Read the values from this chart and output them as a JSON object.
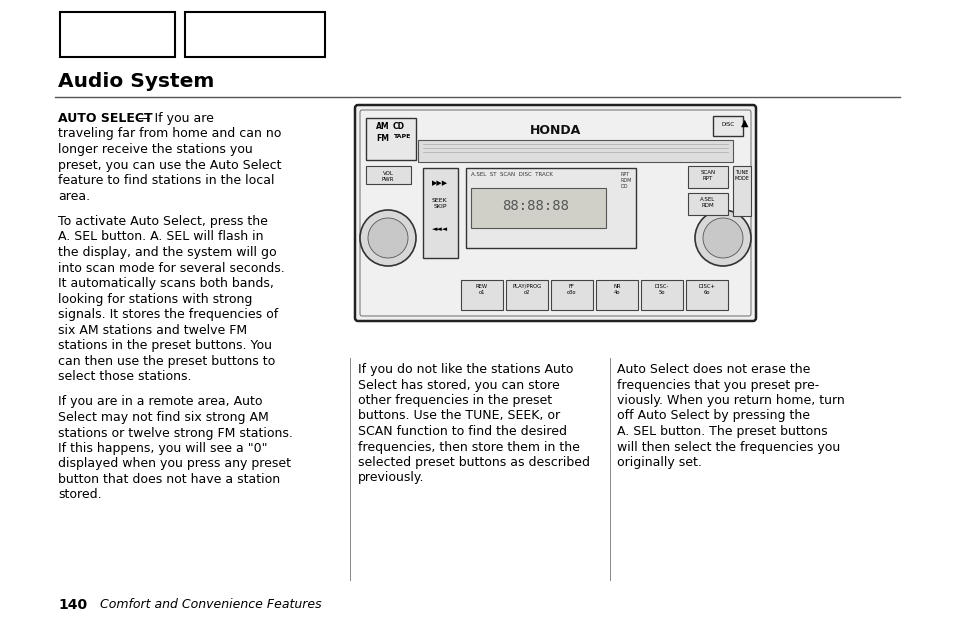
{
  "title": "Audio System",
  "page_number": "140",
  "page_footer": "Comfort and Convenience Features",
  "background_color": "#ffffff",
  "text_color": "#000000",
  "col1_para1_bold": "AUTO SELECT",
  "col1_para1_rest": " — If you are traveling far from home and can no longer receive the stations you preset, you can use the Auto Select feature to find stations in the local area.",
  "col1_para2": "To activate Auto Select, press the A. SEL button. A. SEL will flash in the display, and the system will go into scan mode for several seconds. It automatically scans both bands, looking for stations with strong signals. It stores the frequencies of six AM stations and twelve FM stations in the preset buttons. You can then use the preset buttons to select those stations.",
  "col1_para3": "If you are in a remote area, Auto Select may not find six strong AM stations or twelve strong FM stations. If this happens, you will see a \"0\" displayed when you press any preset button that does not have a station stored.",
  "col2_para1": "If you do not like the stations Auto Select has stored, you can store other frequencies in the preset buttons. Use the TUNE, SEEK, or SCAN function to find the desired frequencies, then store them in the selected preset buttons as described previously.",
  "col3_para1": "Auto Select does not erase the frequencies that you preset previously. When you return home, turn off Auto Select by pressing the A. SEL button. The preset buttons will then select the frequencies you originally set.",
  "col1_lines_p1": [
    "traveling far from home and can no",
    "longer receive the stations you",
    "preset, you can use the Auto Select",
    "feature to find stations in the local",
    "area."
  ],
  "col1_lines_p2": [
    "To activate Auto Select, press the",
    "A. SEL button. A. SEL will flash in",
    "the display, and the system will go",
    "into scan mode for several seconds.",
    "It automatically scans both bands,",
    "looking for stations with strong",
    "signals. It stores the frequencies of",
    "six AM stations and twelve FM",
    "stations in the preset buttons. You",
    "can then use the preset buttons to",
    "select those stations."
  ],
  "col1_lines_p3": [
    "If you are in a remote area, Auto",
    "Select may not find six strong AM",
    "stations or twelve strong FM stations.",
    "If this happens, you will see a \"0\"",
    "displayed when you press any preset",
    "button that does not have a station",
    "stored."
  ],
  "col2_lines": [
    "If you do not like the stations Auto",
    "Select has stored, you can store",
    "other frequencies in the preset",
    "buttons. Use the TUNE, SEEK, or",
    "SCAN function to find the desired",
    "frequencies, then store them in the",
    "selected preset buttons as described",
    "previously."
  ],
  "col3_lines": [
    "Auto Select does not erase the",
    "frequencies that you preset pre-",
    "viously. When you return home, turn",
    "off Auto Select by pressing the",
    "A. SEL button. The preset buttons",
    "will then select the frequencies you",
    "originally set."
  ]
}
